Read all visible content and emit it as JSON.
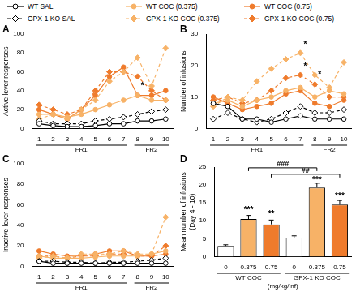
{
  "chart_data": [
    {
      "type": "line",
      "title": "A",
      "y_label": "Active lever responses",
      "categories": [
        "1",
        "2",
        "3",
        "4",
        "5",
        "6",
        "7",
        "8",
        "9",
        "10"
      ],
      "x_groups": [
        {
          "label": "FR1",
          "from": 0,
          "to": 6
        },
        {
          "label": "FR2",
          "from": 7,
          "to": 9
        }
      ],
      "ylim": [
        0,
        100
      ],
      "yticks": [
        0,
        20,
        40,
        60,
        80,
        100
      ],
      "grid": false,
      "legend": "top",
      "series": [
        {
          "name": "WT SAL",
          "color": "#000000",
          "marker": "open circle",
          "line_style": "solid",
          "values": [
            5,
            3,
            2,
            2,
            3,
            5,
            5,
            8,
            8,
            10
          ]
        },
        {
          "name": "GPX-1 KO SAL",
          "color": "#000000",
          "marker": "open diamond",
          "line_style": "dashed",
          "values": [
            8,
            5,
            5,
            5,
            8,
            10,
            12,
            15,
            18,
            20
          ]
        },
        {
          "name": "WT COC (0.375)",
          "color": "#f7b267",
          "marker": "circle",
          "line_style": "solid",
          "values": [
            15,
            15,
            12,
            15,
            20,
            25,
            30,
            35,
            30,
            30
          ]
        },
        {
          "name": "GPX-1 KO COC (0.375)",
          "color": "#f7b267",
          "marker": "diamond",
          "line_style": "dashed",
          "values": [
            10,
            15,
            10,
            20,
            30,
            50,
            60,
            75,
            45,
            85
          ]
        },
        {
          "name": "WT COC (0.75)",
          "color": "#ef7b2c",
          "marker": "circle",
          "line_style": "solid",
          "values": [
            20,
            15,
            10,
            20,
            35,
            55,
            65,
            35,
            35,
            40
          ]
        },
        {
          "name": "GPX-1 KO COC (0.75)",
          "color": "#ef7b2c",
          "marker": "diamond",
          "line_style": "dashed",
          "values": [
            25,
            20,
            15,
            20,
            40,
            60,
            60,
            55,
            40,
            30
          ]
        }
      ],
      "annotations": [
        {
          "x": 7,
          "y": 45,
          "text": "*"
        }
      ]
    },
    {
      "type": "line",
      "title": "B",
      "y_label": "Number of infusions",
      "categories": [
        "1",
        "2",
        "3",
        "4",
        "5",
        "6",
        "7",
        "8",
        "9",
        "10"
      ],
      "x_groups": [
        {
          "label": "FR1",
          "from": 0,
          "to": 6
        },
        {
          "label": "FR2",
          "from": 7,
          "to": 9
        }
      ],
      "ylim": [
        0,
        30
      ],
      "yticks": [
        0,
        10,
        20,
        30
      ],
      "grid": false,
      "series": [
        {
          "name": "WT SAL",
          "color": "#000000",
          "marker": "open circle",
          "line_style": "solid",
          "values": [
            8,
            7,
            3,
            3,
            2,
            3,
            4,
            3,
            3,
            3
          ]
        },
        {
          "name": "GPX-1 KO SAL",
          "color": "#000000",
          "marker": "open diamond",
          "line_style": "dashed",
          "values": [
            3,
            5,
            3,
            2,
            3,
            5,
            7,
            5,
            5,
            6
          ]
        },
        {
          "name": "WT COC (0.375)",
          "color": "#f7b267",
          "marker": "circle",
          "line_style": "solid",
          "values": [
            8,
            9,
            7,
            9,
            10,
            12,
            13,
            10,
            12,
            11
          ]
        },
        {
          "name": "GPX-1 KO COC (0.375)",
          "color": "#f7b267",
          "marker": "diamond",
          "line_style": "dashed",
          "values": [
            7,
            10,
            9,
            15,
            19,
            22,
            24,
            17,
            13,
            21
          ]
        },
        {
          "name": "WT COC (0.75)",
          "color": "#ef7b2c",
          "marker": "circle",
          "line_style": "solid",
          "values": [
            10,
            8,
            6,
            7,
            8,
            11,
            12,
            8,
            7,
            9
          ]
        },
        {
          "name": "GPX-1 KO COC (0.75)",
          "color": "#ef7b2c",
          "marker": "diamond",
          "line_style": "dashed",
          "values": [
            9,
            10,
            8,
            9,
            12,
            16,
            17,
            14,
            10,
            10
          ]
        }
      ],
      "annotations": [
        {
          "x": 6,
          "y": 26.5,
          "text": "*"
        },
        {
          "x": 6,
          "y": 19.5,
          "text": "*"
        },
        {
          "x": 7,
          "y": 17,
          "text": "*"
        }
      ]
    },
    {
      "type": "line",
      "title": "C",
      "y_label": "Inactive lever responses",
      "categories": [
        "1",
        "2",
        "3",
        "4",
        "5",
        "6",
        "7",
        "8",
        "9",
        "10"
      ],
      "x_groups": [
        {
          "label": "FR1",
          "from": 0,
          "to": 6
        },
        {
          "label": "FR2",
          "from": 7,
          "to": 9
        }
      ],
      "ylim": [
        0,
        100
      ],
      "yticks": [
        0,
        20,
        40,
        60,
        80,
        100
      ],
      "grid": false,
      "series": [
        {
          "name": "WT SAL",
          "color": "#000000",
          "marker": "open circle",
          "line_style": "solid",
          "values": [
            5,
            3,
            3,
            3,
            3,
            3,
            3,
            3,
            3,
            3
          ]
        },
        {
          "name": "GPX-1 KO SAL",
          "color": "#000000",
          "marker": "open diamond",
          "line_style": "dashed",
          "values": [
            5,
            5,
            4,
            4,
            3,
            4,
            4,
            5,
            6,
            8
          ]
        },
        {
          "name": "WT COC (0.375)",
          "color": "#f7b267",
          "marker": "circle",
          "line_style": "solid",
          "values": [
            10,
            8,
            8,
            8,
            9,
            10,
            10,
            10,
            12,
            15
          ]
        },
        {
          "name": "GPX-1 KO COC (0.375)",
          "color": "#f7b267",
          "marker": "diamond",
          "line_style": "dashed",
          "values": [
            8,
            10,
            8,
            12,
            12,
            12,
            15,
            12,
            12,
            48
          ]
        },
        {
          "name": "WT COC (0.75)",
          "color": "#ef7b2c",
          "marker": "circle",
          "line_style": "solid",
          "values": [
            15,
            12,
            10,
            10,
            12,
            15,
            15,
            10,
            10,
            12
          ]
        },
        {
          "name": "GPX-1 KO COC (0.75)",
          "color": "#ef7b2c",
          "marker": "diamond",
          "line_style": "dashed",
          "values": [
            10,
            10,
            8,
            10,
            10,
            12,
            12,
            10,
            10,
            20
          ]
        }
      ]
    },
    {
      "type": "bar",
      "title": "D",
      "y_label": [
        "Mean number of infusions",
        "(Day 4 - 10)"
      ],
      "x_label": "(mg/kg/inf)",
      "categories": [
        "0",
        "0.375",
        "0.75",
        "0",
        "0.375",
        "0.75"
      ],
      "x_groups": [
        {
          "label": "WT COC",
          "from": 0,
          "to": 2
        },
        {
          "label": "GPX-1 KO COC",
          "from": 3,
          "to": 5
        }
      ],
      "values": [
        3,
        10.5,
        9,
        5.3,
        19.3,
        14.5
      ],
      "errors": [
        0.3,
        1.0,
        1.2,
        0.5,
        1.2,
        1.2
      ],
      "colors": [
        "#ffffff",
        "#f7b267",
        "#ef7b2c",
        "#ffffff",
        "#f7b267",
        "#ef7b2c"
      ],
      "ylim": [
        0,
        25
      ],
      "yticks": [
        0,
        5,
        10,
        15,
        20,
        25
      ],
      "grid": false,
      "annotations": [
        {
          "x": 1,
          "y": 13,
          "text": "***"
        },
        {
          "x": 2,
          "y": 11.8,
          "text": "**"
        },
        {
          "x": 4,
          "y": 21.3,
          "text": "***"
        },
        {
          "x": 5,
          "y": 16.7,
          "text": "***"
        }
      ],
      "brackets": [
        {
          "from": 1,
          "to": 4,
          "y": 24.8,
          "text": "###"
        },
        {
          "from": 2,
          "to": 5,
          "y": 23,
          "text": "##"
        }
      ]
    }
  ]
}
